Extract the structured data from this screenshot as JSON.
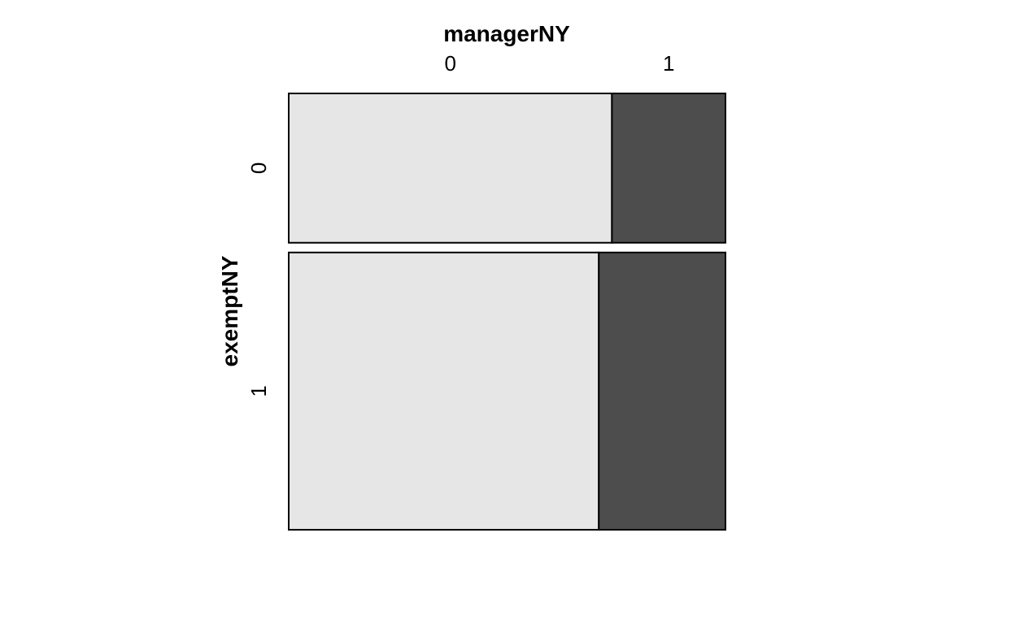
{
  "chart_data": {
    "type": "mosaic",
    "title": "",
    "xlabel": "managerNY",
    "ylabel": "exemptNY",
    "x_categories": [
      "0",
      "1"
    ],
    "y_categories": [
      "0",
      "1"
    ],
    "row_proportions": [
      0.35,
      0.65
    ],
    "cells": [
      {
        "exemptNY": "0",
        "managerNY": "0",
        "proportion_within_row": 0.74
      },
      {
        "exemptNY": "0",
        "managerNY": "1",
        "proportion_within_row": 0.26
      },
      {
        "exemptNY": "1",
        "managerNY": "0",
        "proportion_within_row": 0.71
      },
      {
        "exemptNY": "1",
        "managerNY": "1",
        "proportion_within_row": 0.29
      }
    ],
    "colors": {
      "managerNY_0": "#e6e6e6",
      "managerNY_1": "#4d4d4d"
    },
    "grid": false,
    "legend": "none"
  }
}
